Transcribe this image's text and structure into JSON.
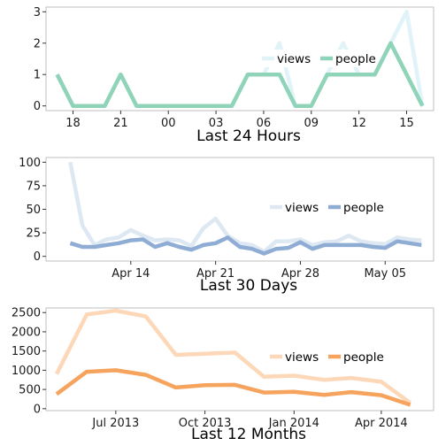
{
  "chart_data": [
    {
      "type": "line",
      "xlabel": "Last 24 Hours",
      "x_tick_labels": [
        "18",
        "21",
        "00",
        "03",
        "06",
        "09",
        "12",
        "15"
      ],
      "x": [
        17,
        18,
        19,
        20,
        21,
        22,
        23,
        24,
        25,
        26,
        27,
        28,
        29,
        30,
        31,
        32,
        33,
        34,
        35,
        36,
        37,
        38,
        39,
        40
      ],
      "x_ticks": [
        18,
        21,
        24,
        27,
        30,
        33,
        36,
        39
      ],
      "xlim": [
        16.3,
        40.7
      ],
      "ylim": [
        -0.15,
        3.15
      ],
      "yticks": [
        0,
        1,
        2,
        3
      ],
      "series": [
        {
          "name": "views",
          "color": "#e0f3f8",
          "values": [
            1,
            0,
            0,
            0,
            1,
            0,
            0,
            0,
            0,
            0,
            0,
            0,
            1,
            1,
            2,
            0,
            0,
            1,
            2,
            1,
            1,
            2,
            3,
            0
          ]
        },
        {
          "name": "people",
          "color": "#8fd4b8",
          "values": [
            1,
            0,
            0,
            0,
            1,
            0,
            0,
            0,
            0,
            0,
            0,
            0,
            1,
            1,
            1,
            0,
            0,
            1,
            1,
            1,
            1,
            2,
            1,
            0
          ]
        }
      ],
      "legend": [
        "views",
        "people"
      ],
      "legend_position": "top-right"
    },
    {
      "type": "line",
      "xlabel": "Last 30 Days",
      "x_tick_labels": [
        "Apr 14",
        "Apr 21",
        "Apr 28",
        "May 05"
      ],
      "x": [
        "2014-04-09",
        "2014-04-10",
        "2014-04-11",
        "2014-04-12",
        "2014-04-13",
        "2014-04-14",
        "2014-04-15",
        "2014-04-16",
        "2014-04-17",
        "2014-04-18",
        "2014-04-19",
        "2014-04-20",
        "2014-04-21",
        "2014-04-22",
        "2014-04-23",
        "2014-04-24",
        "2014-04-25",
        "2014-04-26",
        "2014-04-27",
        "2014-04-28",
        "2014-04-29",
        "2014-04-30",
        "2014-05-01",
        "2014-05-02",
        "2014-05-03",
        "2014-05-04",
        "2014-05-05",
        "2014-05-06",
        "2014-05-07",
        "2014-05-08"
      ],
      "x_ticks": [
        "2014-04-14",
        "2014-04-21",
        "2014-04-28",
        "2014-05-05"
      ],
      "xlim": [
        "2014-04-07",
        "2014-05-09"
      ],
      "ylim": [
        -5,
        105
      ],
      "yticks": [
        0,
        25,
        50,
        75,
        100
      ],
      "series": [
        {
          "name": "views",
          "color": "#dde8f3",
          "values": [
            100,
            33,
            12,
            18,
            20,
            28,
            22,
            17,
            18,
            17,
            11,
            30,
            40,
            22,
            14,
            12,
            5,
            16,
            16,
            18,
            12,
            15,
            16,
            22,
            16,
            14,
            13,
            20,
            18,
            17
          ]
        },
        {
          "name": "people",
          "color": "#8fadd4",
          "values": [
            14,
            10,
            10,
            12,
            14,
            17,
            18,
            10,
            14,
            10,
            7,
            12,
            14,
            20,
            10,
            8,
            3,
            8,
            9,
            15,
            8,
            12,
            12,
            12,
            12,
            10,
            9,
            16,
            14,
            12
          ]
        }
      ],
      "legend": [
        "views",
        "people"
      ],
      "legend_position": "center-right"
    },
    {
      "type": "line",
      "xlabel": "Last 12 Months",
      "x_tick_labels": [
        "Jul 2013",
        "Oct 2013",
        "Jan 2014",
        "Apr 2014"
      ],
      "x": [
        "2013-05",
        "2013-06",
        "2013-07",
        "2013-08",
        "2013-09",
        "2013-10",
        "2013-11",
        "2013-12",
        "2014-01",
        "2014-02",
        "2014-03",
        "2014-04",
        "2014-05"
      ],
      "x_ticks": [
        "2013-07",
        "2013-10",
        "2014-01",
        "2014-04"
      ],
      "xlim": [
        "2013-04-20",
        "2014-05-25"
      ],
      "ylim": [
        -50,
        2620
      ],
      "yticks": [
        0,
        500,
        1000,
        1500,
        2000,
        2500
      ],
      "series": [
        {
          "name": "views",
          "color": "#fdd8b8",
          "values": [
            900,
            2450,
            2550,
            2400,
            1400,
            1430,
            1460,
            830,
            860,
            750,
            800,
            700,
            150
          ]
        },
        {
          "name": "people",
          "color": "#f6a35e",
          "values": [
            380,
            960,
            1000,
            880,
            550,
            610,
            620,
            420,
            440,
            360,
            430,
            350,
            100
          ]
        }
      ],
      "legend": [
        "views",
        "people"
      ],
      "legend_position": "center-right"
    }
  ]
}
